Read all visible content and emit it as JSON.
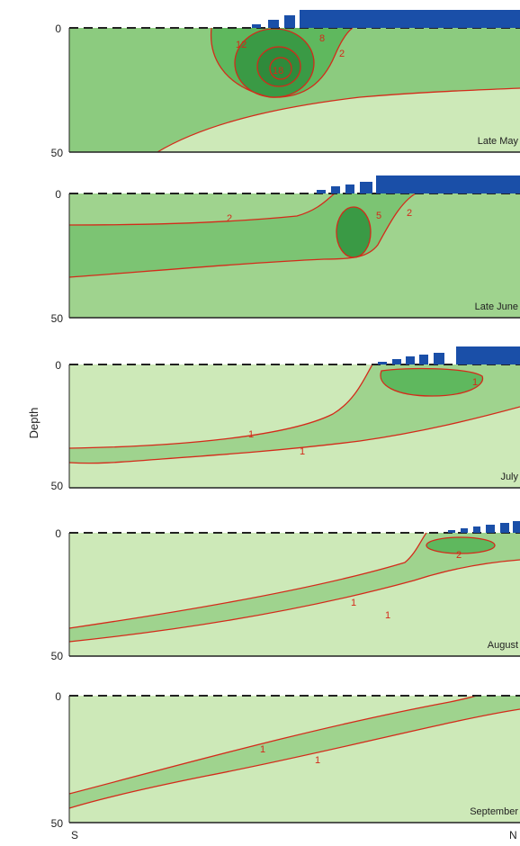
{
  "y_axis_label": "Depth",
  "depth_ticks": [
    "0",
    "50"
  ],
  "x_axis_ends": {
    "left": "S",
    "right": "N"
  },
  "colors": {
    "background_shelf": "#cde9b8",
    "mid_band": "#9fd38e",
    "high_band": "#5fb85e",
    "core": "#3a9a45",
    "contour": "#d42a1a",
    "ice": "#1a4fa8",
    "surface_dash": "#222222"
  },
  "panels": [
    {
      "id": "may",
      "month": "Late May",
      "contour_labels": [
        "12",
        "18",
        "8",
        "2"
      ]
    },
    {
      "id": "june",
      "month": "Late June",
      "contour_labels": [
        "2",
        "5",
        "2"
      ]
    },
    {
      "id": "july",
      "month": "July",
      "contour_labels": [
        "1",
        "1",
        "1"
      ]
    },
    {
      "id": "august",
      "month": "August",
      "contour_labels": [
        "1",
        "1",
        "2"
      ]
    },
    {
      "id": "september",
      "month": "September",
      "contour_labels": [
        "1",
        "1"
      ]
    }
  ]
}
